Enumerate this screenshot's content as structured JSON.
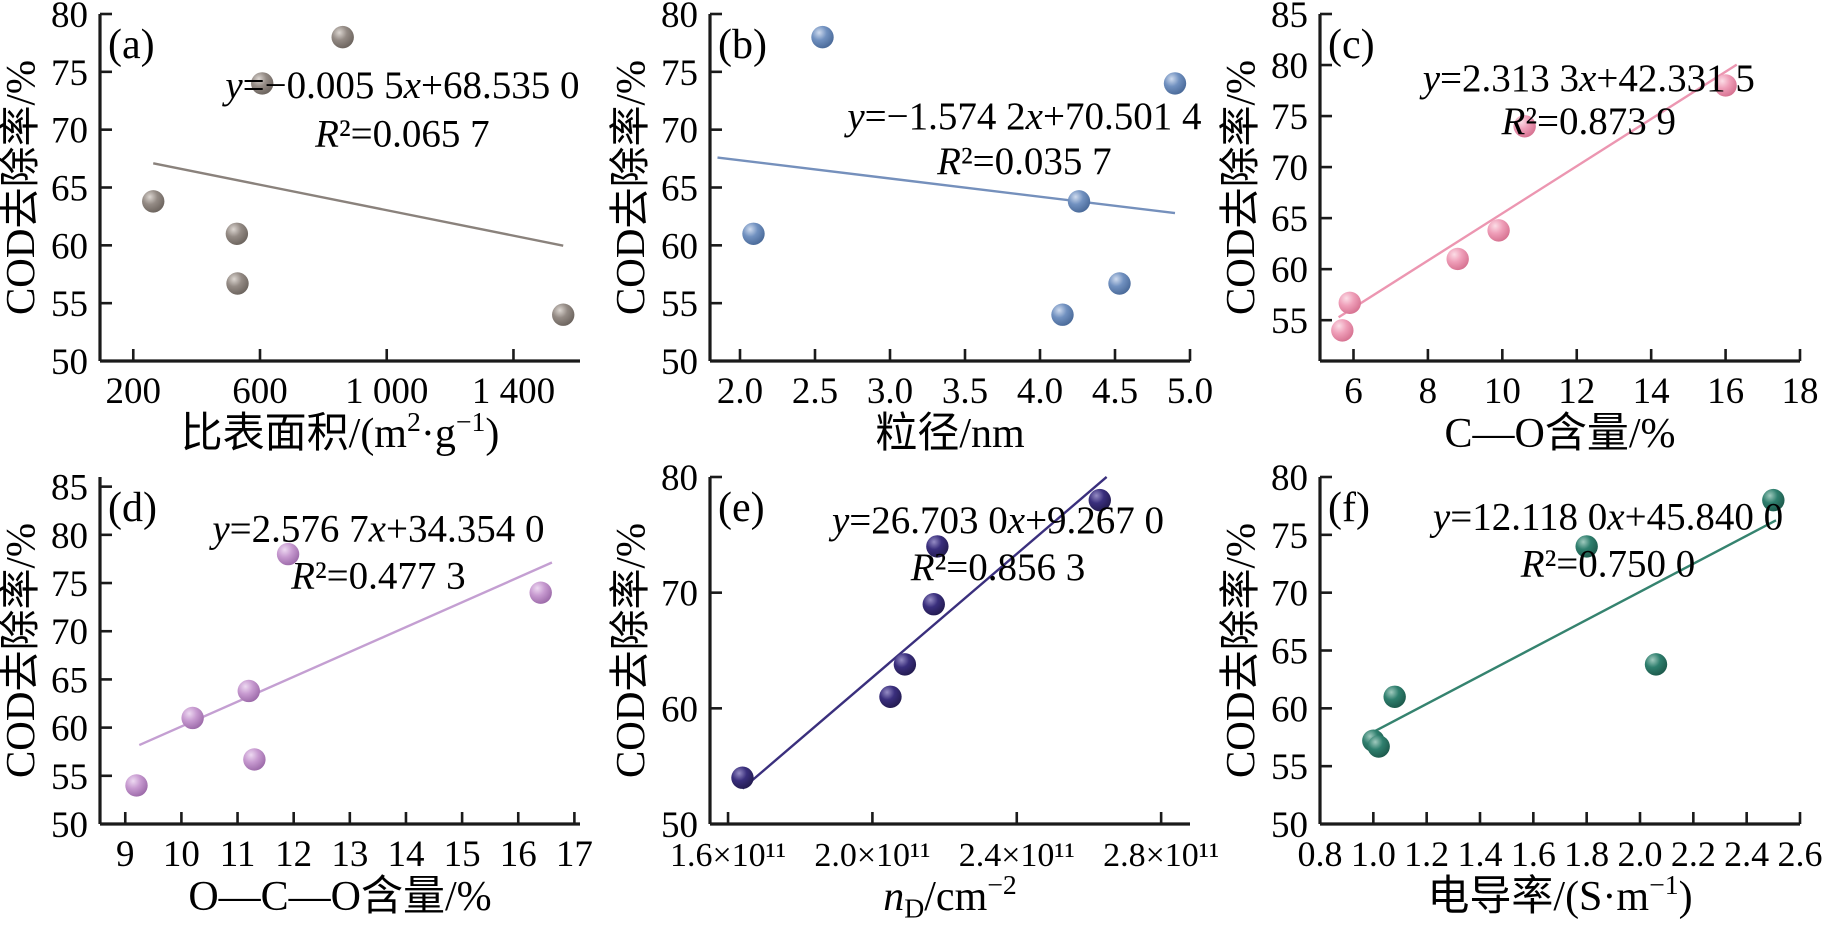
{
  "figure": {
    "background": "#ffffff",
    "axis_color": "#1a1a1a",
    "text_color": "#000000",
    "ylabel": "COD去除率/%"
  },
  "chart_data": [
    {
      "type": "scatter",
      "panel": "(a)",
      "equation": "y=−0.005 5x+68.535 0",
      "r2": "R²=0.065 7",
      "ylabel": "COD去除率/%",
      "xlabel_segments": [
        [
          "比表面积/(m",
          ""
        ],
        [
          "2",
          "sup"
        ],
        [
          "·g",
          ""
        ],
        [
          "−1",
          "sup"
        ],
        [
          ")",
          ""
        ]
      ],
      "x": [
        263,
        527,
        529,
        607,
        861,
        1557
      ],
      "y": [
        63.8,
        61,
        56.7,
        74,
        78,
        54
      ],
      "xlim": [
        95,
        1610
      ],
      "ylim": [
        50,
        80
      ],
      "xticks": [
        200,
        600,
        1000,
        1400
      ],
      "xtick_labels": [
        "200",
        "600",
        "1 000",
        "1 400"
      ],
      "yticks": [
        50,
        55,
        60,
        65,
        70,
        75,
        80
      ],
      "trend": {
        "slope": -0.0055,
        "intercept": 68.535,
        "x_start": 263,
        "x_end": 1557
      },
      "colors": {
        "marker": "#948b85",
        "marker_light": "#dcd6d1",
        "marker_dark": "#6a625c",
        "line": "#8a827c"
      },
      "layout": {
        "eq_cx": 0.63,
        "eq_y1": 0.155,
        "eq_y2": 0.295,
        "xtick_font": 37
      }
    },
    {
      "type": "scatter",
      "panel": "(b)",
      "equation": "y=−1.574 2x+70.501 4",
      "r2": "R²=0.035 7",
      "ylabel": "COD去除率/%",
      "xlabel_segments": [
        [
          "粒径/nm",
          ""
        ]
      ],
      "x": [
        2.09,
        2.55,
        4.15,
        4.26,
        4.53,
        4.9
      ],
      "y": [
        61,
        78,
        54,
        63.8,
        56.7,
        74
      ],
      "xlim": [
        1.8,
        5.0
      ],
      "ylim": [
        50,
        80
      ],
      "xticks": [
        2.0,
        2.5,
        3.0,
        3.5,
        4.0,
        4.5,
        5.0
      ],
      "xtick_labels": [
        "2.0",
        "2.5",
        "3.0",
        "3.5",
        "4.0",
        "4.5",
        "5.0"
      ],
      "yticks": [
        50,
        55,
        60,
        65,
        70,
        75,
        80
      ],
      "trend": {
        "slope": -1.5742,
        "intercept": 70.5014,
        "x_start": 1.85,
        "x_end": 4.9
      },
      "colors": {
        "marker": "#7191c0",
        "marker_light": "#cfdbee",
        "marker_dark": "#486897",
        "line": "#7590bc"
      },
      "layout": {
        "eq_cx": 0.655,
        "eq_y1": 0.245,
        "eq_y2": 0.375,
        "xtick_font": 37
      }
    },
    {
      "type": "scatter",
      "panel": "(c)",
      "equation": "y=2.313 3x+42.331 5",
      "r2": "R²=0.873 9",
      "ylabel": "COD去除率/%",
      "xlabel_segments": [
        [
          "C—O含量/%",
          ""
        ]
      ],
      "x": [
        5.7,
        5.9,
        8.8,
        9.9,
        10.6,
        16.0
      ],
      "y": [
        54,
        56.7,
        61,
        63.8,
        74,
        78
      ],
      "xlim": [
        5.1,
        18
      ],
      "ylim": [
        51,
        85
      ],
      "xticks": [
        6,
        8,
        10,
        12,
        14,
        16,
        18
      ],
      "xtick_labels": [
        "6",
        "8",
        "10",
        "12",
        "14",
        "16",
        "18"
      ],
      "yticks": [
        55,
        60,
        65,
        70,
        75,
        80,
        85
      ],
      "trend": {
        "slope": 2.3133,
        "intercept": 42.3315,
        "x_start": 5.6,
        "x_end": 16.3
      },
      "colors": {
        "marker": "#ef9fb9",
        "marker_light": "#fbdde6",
        "marker_dark": "#d5708f",
        "line": "#ec96b1"
      },
      "layout": {
        "eq_cx": 0.56,
        "eq_y1": 0.135,
        "eq_y2": 0.26,
        "xtick_font": 37
      }
    },
    {
      "type": "scatter",
      "panel": "(d)",
      "equation": "y=2.576 7x+34.354 0",
      "r2": "R²=0.477 3",
      "ylabel": "COD去除率/%",
      "xlabel_segments": [
        [
          "O—C—O含量/%",
          ""
        ]
      ],
      "x": [
        9.2,
        10.2,
        11.2,
        11.3,
        11.9,
        16.4
      ],
      "y": [
        54,
        61,
        63.8,
        56.7,
        78,
        74
      ],
      "xlim": [
        8.55,
        17.1
      ],
      "ylim": [
        50,
        86
      ],
      "xticks": [
        9,
        10,
        11,
        12,
        13,
        14,
        15,
        16,
        17
      ],
      "xtick_labels": [
        "9",
        "10",
        "11",
        "12",
        "13",
        "14",
        "15",
        "16",
        "17"
      ],
      "yticks": [
        50,
        55,
        60,
        65,
        70,
        75,
        80,
        85
      ],
      "trend": {
        "slope": 2.5767,
        "intercept": 34.354,
        "x_start": 9.25,
        "x_end": 16.6
      },
      "colors": {
        "marker": "#c79ad0",
        "marker_light": "#edd9f1",
        "marker_dark": "#9a68a7",
        "line": "#c49fd2"
      },
      "layout": {
        "eq_cx": 0.58,
        "eq_y1": 0.1,
        "eq_y2": 0.235,
        "xtick_font": 37
      }
    },
    {
      "type": "scatter",
      "panel": "(e)",
      "equation": "y=26.703 0x+9.267 0",
      "r2": "R²=0.856 3",
      "ylabel": "COD去除率/%",
      "xlabel_segments": [
        [
          "n",
          "i"
        ],
        [
          "D",
          "sub"
        ],
        [
          "/cm",
          ""
        ],
        [
          "−2",
          "sup"
        ]
      ],
      "x": [
        1.64,
        2.05,
        2.09,
        2.17,
        2.18,
        2.63
      ],
      "y": [
        54,
        61,
        63.8,
        69,
        74,
        78
      ],
      "x_unit": "×10¹¹",
      "xlim": [
        1.55,
        2.88
      ],
      "ylim": [
        50,
        80
      ],
      "xticks": [
        1.6,
        2.0,
        2.4,
        2.8
      ],
      "xtick_labels": [
        "1.6×10¹¹",
        "2.0×10¹¹",
        "2.4×10¹¹",
        "2.8×10¹¹"
      ],
      "yticks": [
        50,
        60,
        70,
        80
      ],
      "trend": {
        "slope": 26.703,
        "intercept": 9.267,
        "x_start": 1.64,
        "x_end": 2.649
      },
      "colors": {
        "marker": "#3a2f7d",
        "marker_light": "#958cc4",
        "marker_dark": "#221a4e",
        "line": "#3a2f7d"
      },
      "layout": {
        "eq_cx": 0.6,
        "eq_y1": 0.075,
        "eq_y2": 0.21,
        "xtick_font": 34
      }
    },
    {
      "type": "scatter",
      "panel": "(f)",
      "equation": "y=12.118 0x+45.840 0",
      "r2": "R²=0.750 0",
      "ylabel": "COD去除率/%",
      "xlabel_segments": [
        [
          "电导率/(S·m",
          ""
        ],
        [
          "−1",
          "sup"
        ],
        [
          ")",
          ""
        ]
      ],
      "x": [
        1.0,
        1.02,
        1.08,
        1.8,
        2.06,
        2.5
      ],
      "y": [
        57.2,
        56.7,
        61,
        74,
        63.8,
        78
      ],
      "xlim": [
        0.8,
        2.6
      ],
      "ylim": [
        50,
        80
      ],
      "xticks": [
        0.8,
        1.0,
        1.2,
        1.4,
        1.6,
        1.8,
        2.0,
        2.2,
        2.4,
        2.6
      ],
      "xtick_labels": [
        "0.8",
        "1.0",
        "1.2",
        "1.4",
        "1.6",
        "1.8",
        "2.0",
        "2.2",
        "2.4",
        "2.6"
      ],
      "yticks": [
        50,
        55,
        60,
        65,
        70,
        75,
        80
      ],
      "trend": {
        "slope": 12.118,
        "intercept": 45.84,
        "x_start": 1.0,
        "x_end": 2.51
      },
      "colors": {
        "marker": "#2f7f6e",
        "marker_light": "#a0cabe",
        "marker_dark": "#1c584a",
        "line": "#35836f"
      },
      "layout": {
        "eq_cx": 0.6,
        "eq_y1": 0.065,
        "eq_y2": 0.2,
        "xtick_font": 36
      }
    }
  ]
}
